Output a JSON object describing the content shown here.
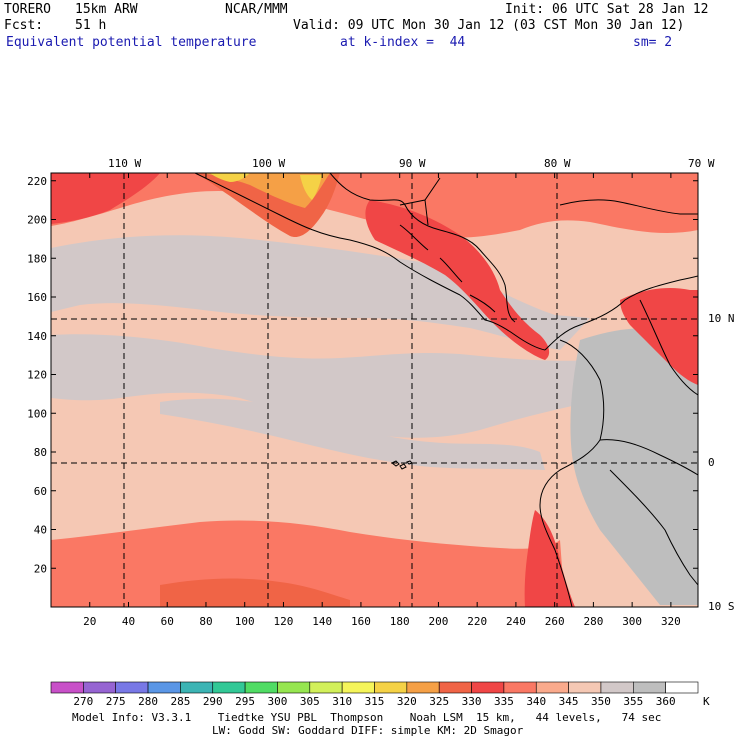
{
  "header": {
    "model": "TORERO",
    "resolution": "15km ARW",
    "org": "NCAR/MMM",
    "init": "Init: 06 UTC Sat 28 Jan 12",
    "fcst_label": "Fcst:",
    "fcst_hours": "51 h",
    "valid": "Valid: 09 UTC Mon 30 Jan 12 (03 CST Mon 30 Jan 12)",
    "field": "Equivalent potential temperature",
    "level": "at k-index =  44",
    "smoothing": "sm= 2"
  },
  "map": {
    "lon_labels": [
      "110 W",
      "100 W",
      "90 W",
      "80 W",
      "70 W"
    ],
    "lat_labels": [
      "10 N",
      "0",
      "10 S"
    ],
    "x_ticks": [
      20,
      40,
      60,
      80,
      100,
      120,
      140,
      160,
      180,
      200,
      220,
      240,
      260,
      280,
      300,
      320
    ],
    "y_ticks": [
      20,
      40,
      60,
      80,
      100,
      120,
      140,
      160,
      180,
      200,
      220
    ]
  },
  "colorbar": {
    "values": [
      "270",
      "275",
      "280",
      "285",
      "290",
      "295",
      "300",
      "305",
      "310",
      "315",
      "320",
      "325",
      "330",
      "335",
      "340",
      "345",
      "350",
      "355",
      "360"
    ],
    "unit": "K",
    "colors": [
      "#c850c8",
      "#9664d2",
      "#7878e6",
      "#5a96e6",
      "#3cb4b4",
      "#32c896",
      "#50dc64",
      "#96e650",
      "#d2f05a",
      "#f5f55a",
      "#f5d246",
      "#f5a046",
      "#f06446",
      "#f04646",
      "#fa7864",
      "#faaa8c",
      "#f5c8b4",
      "#d2c8c8",
      "#bebebe",
      "#ffffff"
    ]
  },
  "footer": {
    "line1": "Model Info: V3.3.1    Tiedtke YSU PBL  Thompson    Noah LSM  15 km,   44 levels,   74 sec",
    "line2": "LW: Godd SW: Goddard DIFF: simple KM: 2D Smagor"
  }
}
